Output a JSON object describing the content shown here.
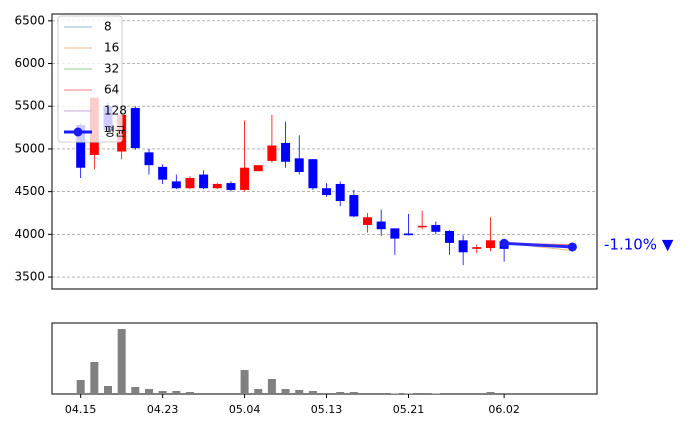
{
  "chart_data": {
    "type": "candlestick",
    "x": [
      0,
      1,
      2,
      3,
      4,
      5,
      6,
      7,
      8,
      9,
      10,
      11,
      12,
      13,
      14,
      15,
      16,
      17,
      18,
      19,
      20,
      21,
      22,
      23,
      24,
      25,
      26,
      27,
      28,
      29,
      30,
      31
    ],
    "open": [
      5280,
      4930,
      5500,
      4970,
      5480,
      4960,
      4790,
      4620,
      4540,
      4700,
      4540,
      4600,
      4520,
      4740,
      4860,
      5070,
      4890,
      4880,
      4540,
      4590,
      4460,
      4110,
      4150,
      4070,
      4010,
      4100,
      4110,
      4040,
      3930,
      3830,
      3840,
      3920
    ],
    "high": [
      5300,
      5600,
      5550,
      5420,
      5500,
      5000,
      4820,
      4700,
      4680,
      4750,
      4600,
      4620,
      5330,
      4810,
      5400,
      5320,
      5160,
      4880,
      4600,
      4620,
      4520,
      4250,
      4290,
      4070,
      4240,
      4280,
      4150,
      4050,
      3990,
      3880,
      4200,
      3920
    ],
    "low": [
      4660,
      4760,
      5150,
      4880,
      4990,
      4700,
      4590,
      4530,
      4530,
      4530,
      4530,
      4500,
      4500,
      4740,
      4840,
      4780,
      4700,
      4520,
      4440,
      4330,
      4200,
      4020,
      3980,
      3760,
      3990,
      4060,
      4000,
      3760,
      3640,
      3780,
      3800,
      3680
    ],
    "close": [
      4780,
      5600,
      5220,
      5400,
      5010,
      4810,
      4640,
      4540,
      4660,
      4540,
      4590,
      4520,
      4780,
      4810,
      5040,
      4850,
      4730,
      4540,
      4460,
      4390,
      4210,
      4200,
      4060,
      3950,
      3990,
      4100,
      4030,
      3900,
      3790,
      3850,
      3930,
      3830
    ],
    "up_color": "#ff0000",
    "down_color": "#0000ff",
    "volume": [
      14,
      32,
      8,
      65,
      7,
      5,
      3,
      3,
      2,
      1,
      1,
      1,
      24,
      5,
      15,
      5,
      4,
      3,
      1,
      2,
      2,
      1,
      1,
      0.5,
      0.5,
      1,
      0.5,
      1,
      1,
      1,
      2,
      0
    ],
    "volume_color": "#808080",
    "volume_ylim": [
      0,
      71
    ],
    "series": [
      {
        "name": "8",
        "color": "#8ab8e6",
        "x": [
          31,
          36
        ],
        "values": [
          3900,
          3870
        ]
      },
      {
        "name": "16",
        "color": "#f5b98a",
        "x": [
          31,
          36
        ],
        "values": [
          3900,
          3810
        ]
      },
      {
        "name": "32",
        "color": "#8fd18f",
        "x": [
          31,
          36
        ],
        "values": [
          3890,
          3860
        ]
      },
      {
        "name": "64",
        "color": "#e88080",
        "x": [
          31,
          36
        ],
        "values": [
          3895,
          3880
        ]
      },
      {
        "name": "128",
        "color": "#c8a8dc",
        "x": [
          31,
          36
        ],
        "values": [
          3890,
          3850
        ]
      },
      {
        "name": "평균",
        "color": "#1a1aff",
        "x": [
          31,
          36
        ],
        "values": [
          3895,
          3852
        ],
        "marker": true
      }
    ],
    "annotation": "-1.10% ▼",
    "annotation_color": "#0000ff",
    "xlim": [
      -2.1,
      37.8
    ],
    "xticks": [
      {
        "value": 0,
        "label": "04.15"
      },
      {
        "value": 6,
        "label": "04.23"
      },
      {
        "value": 12,
        "label": "05.04"
      },
      {
        "value": 18,
        "label": "05.13"
      },
      {
        "value": 24,
        "label": "05.21"
      },
      {
        "value": 31,
        "label": "06.02"
      }
    ],
    "ylim": [
      3360,
      6580
    ],
    "yticks": [
      3500,
      4000,
      4500,
      5000,
      5500,
      6000,
      6500
    ],
    "grid": true
  }
}
